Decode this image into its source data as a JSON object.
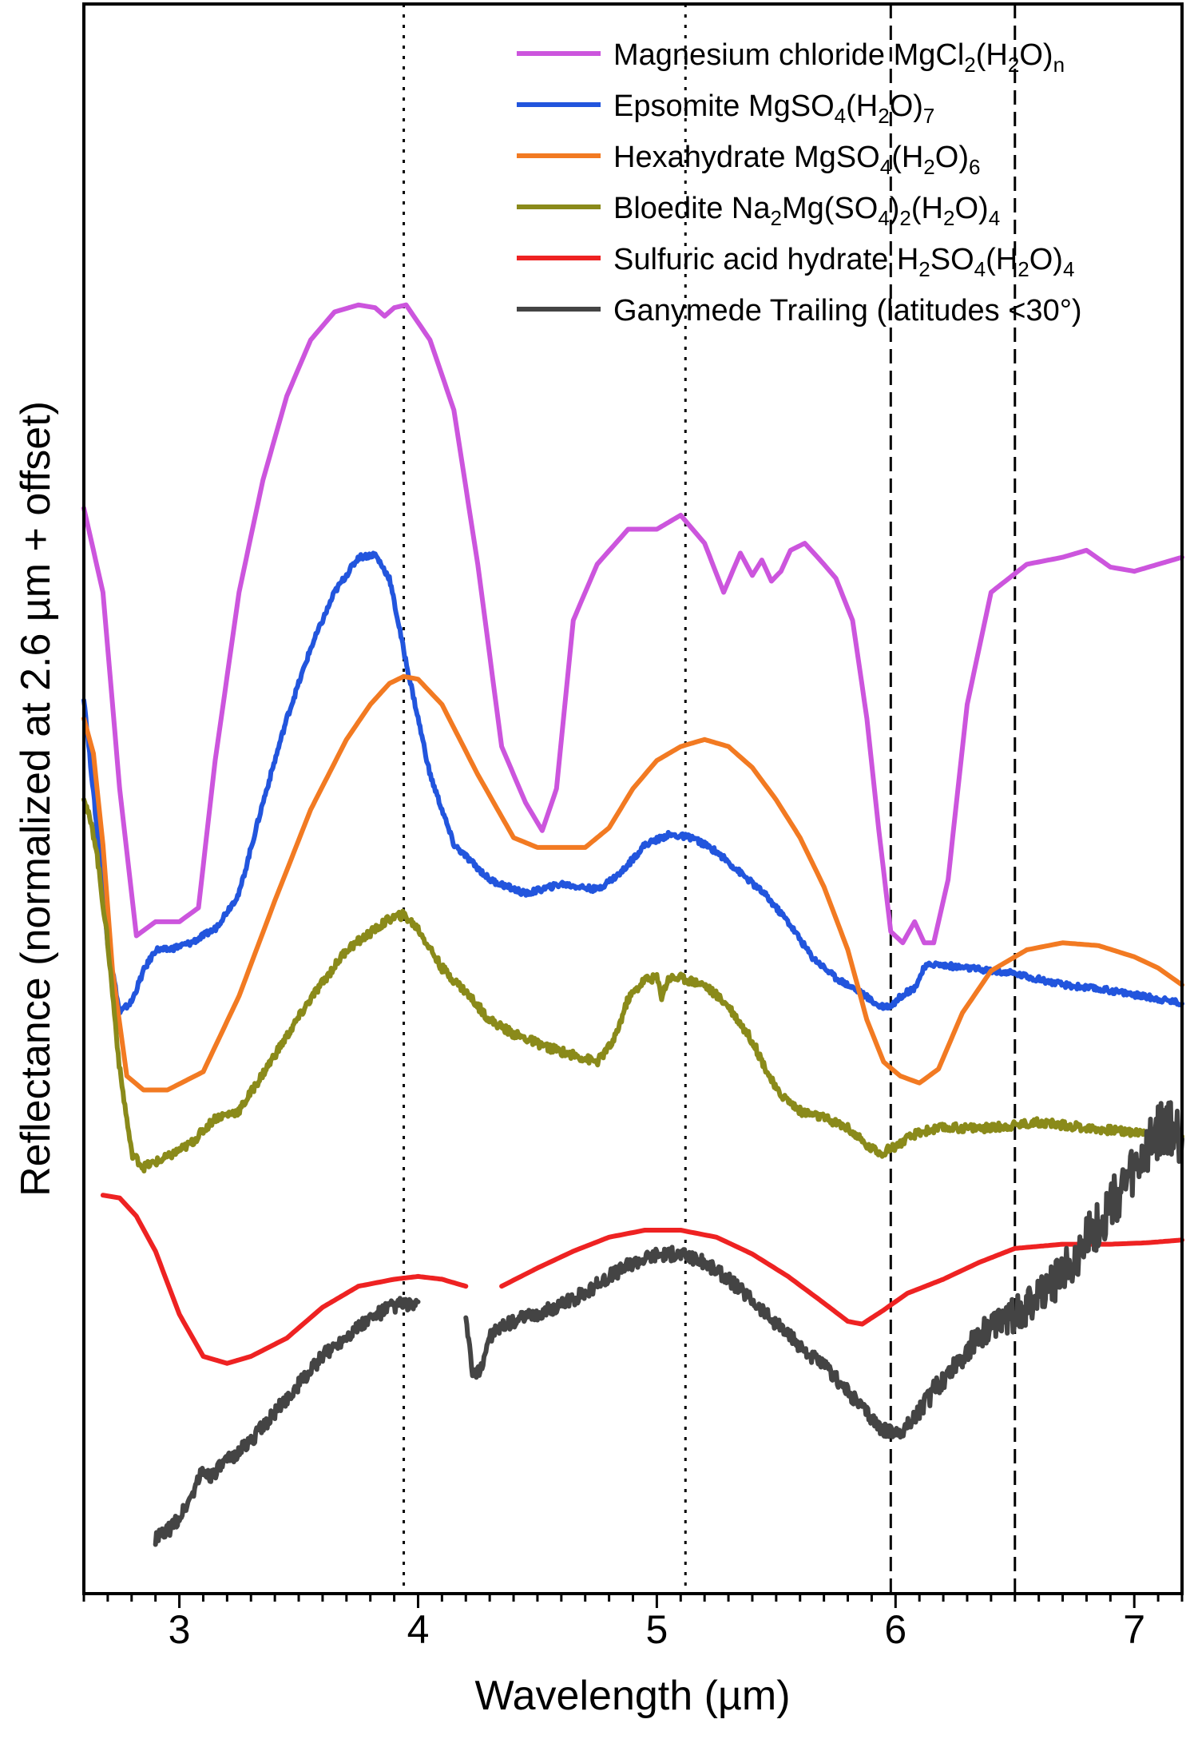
{
  "chart_data": {
    "type": "line",
    "title": "",
    "xlabel": "Wavelength (µm)",
    "ylabel": "Reflectance (normalized at 2.6 µm + offset)",
    "xlim": [
      2.6,
      7.2
    ],
    "ylim": [
      0,
      1
    ],
    "x_ticks": [
      "3",
      "4",
      "5",
      "6",
      "7"
    ],
    "grid": false,
    "legend_position": "top-right",
    "reference_lines": [
      {
        "x": 3.94,
        "style": "dotted"
      },
      {
        "x": 5.12,
        "style": "dotted"
      },
      {
        "x": 5.98,
        "style": "dashed"
      },
      {
        "x": 6.5,
        "style": "dashed"
      }
    ],
    "series": [
      {
        "name": "Magnesium chloride MgCl2(H2O)n",
        "legend": {
          "base": "Magnesium chloride MgCl",
          "s1": "2",
          "mid": "(H",
          "s2": "2",
          "tail": "O)",
          "s3": "n"
        },
        "color": "#cc55dd",
        "noise": 0,
        "x": [
          2.6,
          2.68,
          2.75,
          2.82,
          2.9,
          3.0,
          3.08,
          3.15,
          3.25,
          3.35,
          3.45,
          3.55,
          3.65,
          3.75,
          3.82,
          3.86,
          3.9,
          3.95,
          4.05,
          4.15,
          4.25,
          4.35,
          4.45,
          4.52,
          4.58,
          4.65,
          4.75,
          4.88,
          5.0,
          5.1,
          5.2,
          5.28,
          5.35,
          5.4,
          5.44,
          5.48,
          5.52,
          5.56,
          5.62,
          5.7,
          5.75,
          5.82,
          5.88,
          5.93,
          5.98,
          6.03,
          6.08,
          6.12,
          6.16,
          6.22,
          6.3,
          6.4,
          6.55,
          6.7,
          6.8,
          6.9,
          7.0,
          7.1,
          7.2
        ],
        "y": [
          0.76,
          0.7,
          0.56,
          0.455,
          0.465,
          0.465,
          0.475,
          0.58,
          0.7,
          0.78,
          0.84,
          0.88,
          0.9,
          0.905,
          0.903,
          0.897,
          0.903,
          0.905,
          0.88,
          0.83,
          0.72,
          0.59,
          0.55,
          0.53,
          0.56,
          0.68,
          0.72,
          0.745,
          0.745,
          0.755,
          0.735,
          0.7,
          0.728,
          0.712,
          0.723,
          0.708,
          0.715,
          0.73,
          0.735,
          0.72,
          0.71,
          0.68,
          0.61,
          0.53,
          0.458,
          0.45,
          0.465,
          0.45,
          0.45,
          0.495,
          0.62,
          0.7,
          0.72,
          0.725,
          0.73,
          0.718,
          0.715,
          0.72,
          0.725
        ]
      },
      {
        "name": "Epsomite MgSO4(H2O)7",
        "legend": {
          "base": "Epsomite MgSO",
          "s1": "4",
          "mid": "(H",
          "s2": "2",
          "tail": "O)",
          "s3": "7"
        },
        "color": "#2255dd",
        "noise": 0.002,
        "x": [
          2.6,
          2.65,
          2.7,
          2.75,
          2.8,
          2.85,
          2.9,
          2.95,
          3.05,
          3.15,
          3.25,
          3.35,
          3.45,
          3.55,
          3.65,
          3.75,
          3.82,
          3.88,
          3.95,
          4.05,
          4.15,
          4.3,
          4.45,
          4.6,
          4.75,
          4.85,
          4.95,
          5.05,
          5.15,
          5.25,
          5.35,
          5.45,
          5.55,
          5.65,
          5.75,
          5.85,
          5.93,
          5.98,
          6.03,
          6.08,
          6.12,
          6.15,
          6.3,
          6.5,
          6.7,
          6.9,
          7.1,
          7.2
        ],
        "y": [
          0.625,
          0.54,
          0.45,
          0.4,
          0.408,
          0.43,
          0.445,
          0.445,
          0.45,
          0.46,
          0.485,
          0.55,
          0.61,
          0.66,
          0.7,
          0.725,
          0.727,
          0.71,
          0.65,
          0.57,
          0.52,
          0.495,
          0.485,
          0.492,
          0.488,
          0.5,
          0.52,
          0.527,
          0.525,
          0.515,
          0.5,
          0.485,
          0.465,
          0.44,
          0.425,
          0.415,
          0.405,
          0.405,
          0.413,
          0.418,
          0.432,
          0.435,
          0.432,
          0.428,
          0.42,
          0.416,
          0.41,
          0.407
        ]
      },
      {
        "name": "Hexahydrate MgSO4(H2O)6",
        "legend": {
          "base": "Hexahydrate MgSO",
          "s1": "4",
          "mid": "(H",
          "s2": "2",
          "tail": "O)",
          "s3": "6"
        },
        "color": "#f27a22",
        "noise": 0,
        "x": [
          2.6,
          2.64,
          2.68,
          2.72,
          2.78,
          2.85,
          2.95,
          3.1,
          3.25,
          3.4,
          3.55,
          3.7,
          3.8,
          3.88,
          3.94,
          4.0,
          4.1,
          4.25,
          4.4,
          4.5,
          4.6,
          4.7,
          4.8,
          4.9,
          5.0,
          5.1,
          5.2,
          5.3,
          5.4,
          5.5,
          5.6,
          5.7,
          5.8,
          5.88,
          5.95,
          6.02,
          6.1,
          6.18,
          6.28,
          6.4,
          6.55,
          6.7,
          6.85,
          7.0,
          7.1,
          7.2
        ],
        "y": [
          0.61,
          0.585,
          0.52,
          0.43,
          0.355,
          0.345,
          0.345,
          0.358,
          0.412,
          0.48,
          0.545,
          0.595,
          0.62,
          0.635,
          0.64,
          0.638,
          0.62,
          0.57,
          0.525,
          0.518,
          0.518,
          0.518,
          0.532,
          0.56,
          0.58,
          0.59,
          0.595,
          0.59,
          0.575,
          0.552,
          0.525,
          0.49,
          0.445,
          0.395,
          0.365,
          0.355,
          0.35,
          0.36,
          0.4,
          0.43,
          0.445,
          0.45,
          0.448,
          0.44,
          0.432,
          0.42
        ]
      },
      {
        "name": "Bloedite Na2Mg(SO4)2(H2O)4",
        "legend": {
          "base": "Bloedite Na",
          "s1": "2",
          "mid": "Mg(SO",
          "s2": "4",
          "mid2": ")",
          "s4": "2",
          "mid3": "(H",
          "s5": "2",
          "tail": "O)",
          "s3": "4"
        },
        "color": "#8a8a1a",
        "noise": 0.003,
        "x": [
          2.6,
          2.65,
          2.7,
          2.75,
          2.8,
          2.85,
          2.95,
          3.05,
          3.15,
          3.25,
          3.4,
          3.55,
          3.7,
          3.8,
          3.88,
          3.94,
          4.0,
          4.1,
          4.2,
          4.3,
          4.4,
          4.55,
          4.65,
          4.75,
          4.82,
          4.88,
          4.95,
          5.0,
          5.02,
          5.05,
          5.1,
          5.2,
          5.3,
          5.4,
          5.5,
          5.6,
          5.7,
          5.8,
          5.88,
          5.94,
          6.0,
          6.1,
          6.2,
          6.4,
          6.6,
          6.8,
          7.0,
          7.2
        ],
        "y": [
          0.555,
          0.52,
          0.45,
          0.36,
          0.3,
          0.29,
          0.297,
          0.307,
          0.325,
          0.33,
          0.37,
          0.41,
          0.445,
          0.457,
          0.467,
          0.47,
          0.46,
          0.432,
          0.415,
          0.395,
          0.385,
          0.375,
          0.37,
          0.365,
          0.38,
          0.41,
          0.424,
          0.425,
          0.412,
          0.425,
          0.425,
          0.42,
          0.405,
          0.38,
          0.345,
          0.33,
          0.325,
          0.318,
          0.305,
          0.3,
          0.305,
          0.315,
          0.318,
          0.318,
          0.322,
          0.318,
          0.315,
          0.31
        ]
      },
      {
        "name": "Sulfuric acid hydrate H2SO4(H2O)4",
        "legend": {
          "base": "Sulfuric acid hydrate H",
          "s1": "2",
          "mid": "SO",
          "s2": "4",
          "mid2": "(H",
          "s4": "2",
          "tail": "O)",
          "s3": "4"
        },
        "color": "#ee2222",
        "noise": 0,
        "x": [
          2.68,
          2.75,
          2.82,
          2.9,
          3.0,
          3.1,
          3.2,
          3.3,
          3.45,
          3.6,
          3.75,
          3.9,
          4.0,
          4.1,
          4.2,
          null,
          4.35,
          4.5,
          4.65,
          4.8,
          4.95,
          5.1,
          5.25,
          5.4,
          5.55,
          5.7,
          5.8,
          5.86,
          5.95,
          6.05,
          6.2,
          6.35,
          6.5,
          6.7,
          6.9,
          7.05,
          7.2
        ],
        "y": [
          0.27,
          0.268,
          0.255,
          0.23,
          0.185,
          0.155,
          0.15,
          0.155,
          0.168,
          0.19,
          0.205,
          0.21,
          0.212,
          0.21,
          0.205,
          null,
          0.205,
          0.218,
          0.23,
          0.24,
          0.245,
          0.245,
          0.24,
          0.228,
          0.212,
          0.193,
          0.18,
          0.178,
          0.188,
          0.2,
          0.21,
          0.222,
          0.232,
          0.235,
          0.235,
          0.236,
          0.238
        ]
      },
      {
        "name": "Ganymede Trailing (latitudes <30°)",
        "legend": {
          "base": "Ganymede Trailing (latitudes <30°)"
        },
        "color": "#444444",
        "noise": 0.005,
        "x": [
          2.9,
          2.95,
          3.0,
          3.05,
          3.08,
          3.1,
          3.13,
          3.2,
          3.3,
          3.4,
          3.5,
          3.6,
          3.7,
          3.8,
          3.88,
          3.94,
          4.0,
          null,
          4.2,
          4.23,
          4.26,
          4.3,
          4.4,
          4.5,
          4.6,
          4.7,
          4.8,
          4.9,
          5.0,
          5.1,
          5.2,
          5.3,
          5.4,
          5.5,
          5.6,
          5.7,
          5.8,
          5.88,
          5.95,
          6.0,
          6.05,
          6.15,
          6.25,
          6.35,
          6.45,
          6.55,
          6.65,
          6.75,
          6.85,
          6.95,
          7.05,
          7.1,
          7.15,
          7.2
        ],
        "y": [
          0.025,
          0.03,
          0.04,
          0.055,
          0.068,
          0.073,
          0.07,
          0.08,
          0.095,
          0.115,
          0.135,
          0.155,
          0.17,
          0.182,
          0.19,
          0.193,
          0.19,
          null,
          0.185,
          0.14,
          0.145,
          0.17,
          0.18,
          0.185,
          0.192,
          0.2,
          0.212,
          0.222,
          0.228,
          0.228,
          0.222,
          0.21,
          0.195,
          0.178,
          0.162,
          0.148,
          0.13,
          0.115,
          0.102,
          0.1,
          0.105,
          0.128,
          0.15,
          0.17,
          0.18,
          0.19,
          0.205,
          0.225,
          0.25,
          0.275,
          0.3,
          0.315,
          0.32,
          0.31
        ]
      }
    ]
  }
}
